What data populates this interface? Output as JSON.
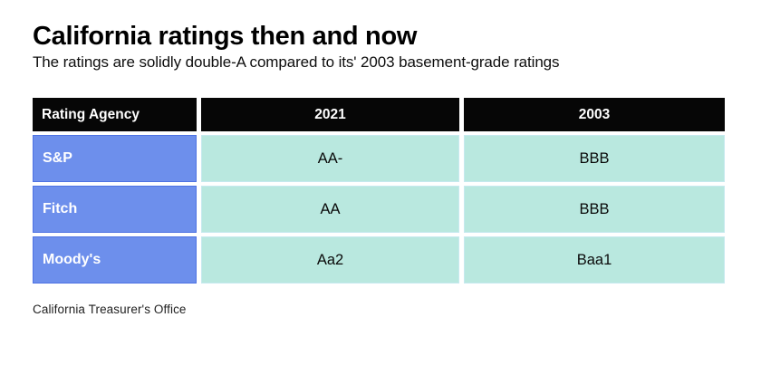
{
  "chart_data": {
    "type": "table",
    "title": "California ratings then and now",
    "subtitle": "The ratings are solidly double-A compared to its' 2003 basement-grade ratings",
    "columns": [
      "Rating Agency",
      "2021",
      "2003"
    ],
    "rows": [
      [
        "S&P",
        "AA-",
        "BBB"
      ],
      [
        "Fitch",
        "AA",
        "BBB"
      ],
      [
        "Moody's",
        "Aa2",
        "Baa1"
      ]
    ],
    "source": "California Treasurer's Office",
    "layout": {
      "legend": "none",
      "grid": "off"
    },
    "colors": {
      "header_bg": "#060606",
      "header_text": "#ffffff",
      "agency_bg": "#6d8fec",
      "agency_border": "#4e73e3",
      "agency_text": "#ffffff",
      "value_bg": "#b9e8df",
      "value_text": "#0a0a0a",
      "background": "#ffffff"
    }
  }
}
